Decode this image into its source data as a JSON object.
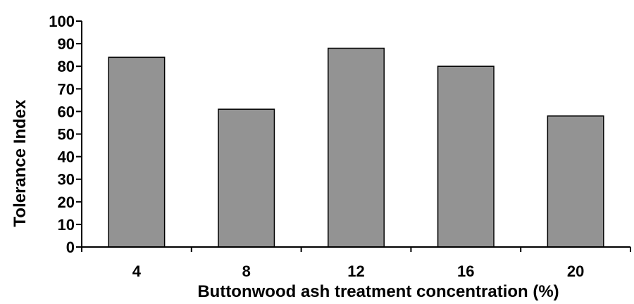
{
  "chart_data": {
    "type": "bar",
    "categories": [
      "4",
      "8",
      "12",
      "16",
      "20"
    ],
    "values": [
      84,
      61,
      88,
      80,
      58
    ],
    "xlabel": "Buttonwood ash treatment concentration (%)",
    "ylabel": "Tolerance Index",
    "ylim": [
      0,
      100
    ],
    "yticks": [
      0,
      10,
      20,
      30,
      40,
      50,
      60,
      70,
      80,
      90,
      100
    ],
    "grid": false,
    "bar_color": "#939393",
    "edge_color": "#000000"
  }
}
